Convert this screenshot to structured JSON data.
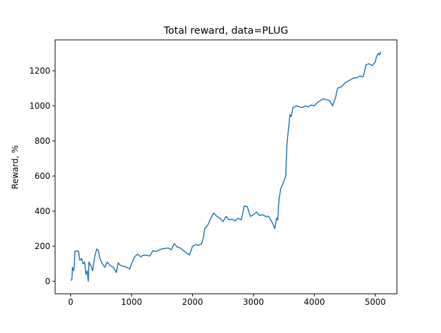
{
  "chart_data": {
    "type": "line",
    "title": "Total reward, data=PLUG",
    "ylabel": "Reward, %",
    "x": [
      0,
      20,
      30,
      50,
      60,
      70,
      100,
      130,
      150,
      180,
      200,
      230,
      250,
      270,
      290,
      300,
      330,
      360,
      400,
      430,
      460,
      480,
      520,
      560,
      600,
      650,
      700,
      750,
      780,
      820,
      870,
      920,
      970,
      1000,
      1050,
      1100,
      1150,
      1200,
      1300,
      1350,
      1400,
      1500,
      1600,
      1650,
      1700,
      1750,
      1800,
      1850,
      1950,
      2000,
      2050,
      2100,
      2150,
      2180,
      2200,
      2250,
      2300,
      2350,
      2400,
      2450,
      2500,
      2550,
      2600,
      2650,
      2700,
      2750,
      2800,
      2850,
      2900,
      2950,
      3000,
      3050,
      3100,
      3150,
      3200,
      3250,
      3300,
      3330,
      3350,
      3380,
      3400,
      3420,
      3450,
      3500,
      3530,
      3550,
      3560,
      3580,
      3600,
      3620,
      3650,
      3700,
      3750,
      3800,
      3850,
      3900,
      3950,
      4000,
      4050,
      4100,
      4150,
      4200,
      4250,
      4300,
      4350,
      4380,
      4450,
      4500,
      4550,
      4600,
      4650,
      4700,
      4750,
      4800,
      4850,
      4900,
      4950,
      5000,
      5020,
      5050,
      5070,
      5090
    ],
    "series": [
      {
        "name": "reward",
        "color": "#1f77b4",
        "values": [
          5,
          10,
          80,
          60,
          90,
          170,
          175,
          170,
          120,
          130,
          100,
          110,
          40,
          60,
          0,
          110,
          90,
          60,
          150,
          185,
          170,
          130,
          100,
          80,
          110,
          90,
          80,
          50,
          105,
          90,
          85,
          80,
          70,
          100,
          140,
          155,
          140,
          150,
          145,
          175,
          170,
          185,
          190,
          180,
          215,
          195,
          190,
          175,
          150,
          200,
          210,
          205,
          215,
          250,
          300,
          320,
          360,
          390,
          370,
          360,
          340,
          370,
          350,
          355,
          345,
          360,
          350,
          430,
          425,
          370,
          380,
          395,
          375,
          380,
          370,
          370,
          340,
          320,
          300,
          360,
          350,
          470,
          530,
          570,
          600,
          780,
          820,
          880,
          950,
          940,
          990,
          1000,
          995,
          990,
          1000,
          995,
          1005,
          1000,
          1020,
          1030,
          1040,
          1035,
          1030,
          1000,
          1050,
          1100,
          1110,
          1130,
          1140,
          1150,
          1160,
          1160,
          1170,
          1165,
          1235,
          1240,
          1230,
          1250,
          1280,
          1300,
          1290,
          1310
        ]
      }
    ],
    "xlim": [
      -255,
      5355
    ],
    "ylim": [
      -71,
      1376
    ],
    "xticks": [
      0,
      1000,
      2000,
      3000,
      4000,
      5000
    ],
    "yticks": [
      0,
      200,
      400,
      600,
      800,
      1000,
      1200
    ]
  }
}
